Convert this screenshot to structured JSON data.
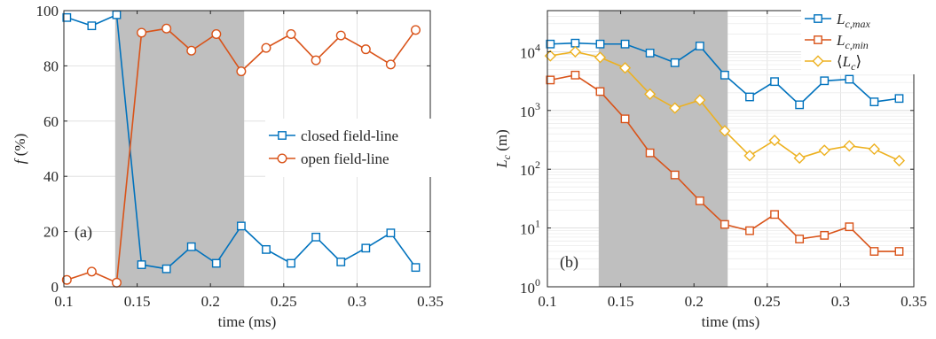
{
  "chart_data": [
    {
      "type": "line",
      "panel_label": "(a)",
      "xlabel": "time (ms)",
      "ylabel_symbol": "f",
      "ylabel_unit": "(%)",
      "xlim": [
        0.1,
        0.35
      ],
      "ylim": [
        0,
        100
      ],
      "yscale": "linear",
      "grid": true,
      "legend_position": "center-right",
      "xticks": [
        0.1,
        0.15,
        0.2,
        0.25,
        0.3,
        0.35
      ],
      "xtick_labels": [
        "0.1",
        "0.15",
        "0.2",
        "0.25",
        "0.3",
        "0.35"
      ],
      "yticks": [
        0,
        20,
        40,
        60,
        80,
        100
      ],
      "ytick_labels": [
        "0",
        "20",
        "40",
        "60",
        "80",
        "100"
      ],
      "shaded_region": {
        "x_start": 0.135,
        "x_end": 0.223,
        "color": "#bfbfbf"
      },
      "x": [
        0.102,
        0.119,
        0.136,
        0.153,
        0.17,
        0.187,
        0.204,
        0.221,
        0.238,
        0.255,
        0.272,
        0.289,
        0.306,
        0.323,
        0.34
      ],
      "series": [
        {
          "name": "closed field-line",
          "color": "#0072BD",
          "marker": "square",
          "values": [
            97.5,
            94.5,
            98.5,
            8,
            6.5,
            14.5,
            8.5,
            22,
            13.5,
            8.5,
            18,
            9,
            14,
            19.5,
            7
          ]
        },
        {
          "name": "open field-line",
          "color": "#D95319",
          "marker": "circle",
          "values": [
            2.5,
            5.5,
            1.5,
            92,
            93.5,
            85.5,
            91.5,
            78,
            86.5,
            91.5,
            82,
            91,
            86,
            80.5,
            93
          ]
        }
      ]
    },
    {
      "type": "line",
      "panel_label": "(b)",
      "xlabel": "time (ms)",
      "ylabel_symbol": "L",
      "ylabel_subscript": "c",
      "ylabel_unit": "(m)",
      "xlim": [
        0.1,
        0.35
      ],
      "ylim": [
        1,
        50000
      ],
      "yscale": "log",
      "grid": true,
      "legend_position": "top-right",
      "xticks": [
        0.1,
        0.15,
        0.2,
        0.25,
        0.3,
        0.35
      ],
      "xtick_labels": [
        "0.1",
        "0.15",
        "0.2",
        "0.25",
        "0.3",
        "0.35"
      ],
      "yticks": [
        1,
        10,
        100,
        1000,
        10000
      ],
      "ytick_labels": [
        [
          "10",
          "0"
        ],
        [
          "10",
          "1"
        ],
        [
          "10",
          "2"
        ],
        [
          "10",
          "3"
        ],
        [
          "10",
          "4"
        ]
      ],
      "shaded_region": {
        "x_start": 0.135,
        "x_end": 0.223,
        "color": "#bfbfbf"
      },
      "x": [
        0.102,
        0.119,
        0.136,
        0.153,
        0.17,
        0.187,
        0.204,
        0.221,
        0.238,
        0.255,
        0.272,
        0.289,
        0.306,
        0.323,
        0.34
      ],
      "series": [
        {
          "name_base": "L",
          "name_sub": "c,max",
          "color": "#0072BD",
          "marker": "square",
          "values": [
            13500,
            14000,
            13500,
            13500,
            9500,
            6500,
            12500,
            4000,
            1700,
            3100,
            1250,
            3200,
            3400,
            1400,
            1600
          ]
        },
        {
          "name_base": "L",
          "name_sub": "c,min",
          "color": "#D95319",
          "marker": "square",
          "values": [
            3300,
            4000,
            2100,
            720,
            190,
            80,
            29,
            11.5,
            9,
            17,
            6.5,
            7.5,
            10.5,
            4,
            4
          ]
        },
        {
          "name_prefix": "⟨",
          "name_base": "L",
          "name_sub": "c",
          "name_suffix": "⟩",
          "color": "#EDB120",
          "marker": "diamond",
          "values": [
            8500,
            10000,
            8000,
            5300,
            1900,
            1100,
            1500,
            450,
            170,
            310,
            155,
            210,
            250,
            220,
            140
          ]
        }
      ]
    }
  ]
}
